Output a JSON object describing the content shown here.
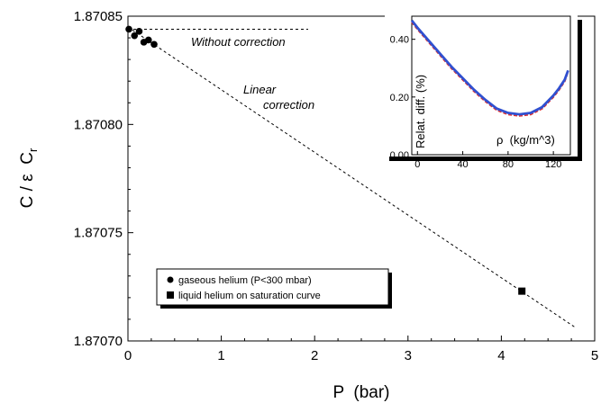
{
  "chart_data": {
    "type": "scatter",
    "title": "",
    "xlabel": "P  (bar)",
    "ylabel": "C / ε  C",
    "ylabel_subscript": "r",
    "xlim": [
      0,
      5
    ],
    "ylim": [
      1.8707,
      1.87085
    ],
    "x_ticks": [
      "0",
      "1",
      "2",
      "3",
      "4",
      "5"
    ],
    "y_ticks": [
      "1.87070",
      "1.87075",
      "1.87080",
      "1.87085"
    ],
    "series": [
      {
        "name": "gaseous helium (P<300 mbar)",
        "marker": "circle",
        "x": [
          0.01,
          0.07,
          0.12,
          0.17,
          0.22,
          0.28
        ],
        "y": [
          1.870844,
          1.870841,
          1.870843,
          1.870838,
          1.870839,
          1.870837
        ]
      },
      {
        "name": "liquid helium on saturation curve",
        "marker": "square",
        "x": [
          4.22
        ],
        "y": [
          1.870723
        ]
      }
    ],
    "reference_lines": [
      {
        "label": "Without correction",
        "x": [
          0.0,
          1.93
        ],
        "y": [
          1.870844,
          1.870844
        ],
        "style": "dashed"
      },
      {
        "label": "Linear correction",
        "x": [
          0.0,
          4.8
        ],
        "y": [
          1.870845,
          1.870706
        ],
        "style": "dashed"
      }
    ],
    "legend_position": "bottom-center",
    "inset": {
      "type": "line",
      "xlabel": "ρ  (kg/m^3)",
      "ylabel": "Relat. diff. (%)",
      "xlim": [
        -5,
        135
      ],
      "ylim": [
        0,
        0.48
      ],
      "x_ticks": [
        "0",
        "40",
        "80",
        "120"
      ],
      "y_ticks": [
        "0.00",
        "0.20",
        "0.40"
      ],
      "series": [
        {
          "color": "#e03030",
          "x": [
            -5,
            0,
            10,
            20,
            30,
            40,
            50,
            60,
            70,
            80,
            90,
            100,
            110,
            120,
            125,
            130,
            133
          ],
          "y": [
            0.46,
            0.435,
            0.39,
            0.345,
            0.3,
            0.26,
            0.22,
            0.185,
            0.155,
            0.14,
            0.135,
            0.14,
            0.16,
            0.2,
            0.225,
            0.255,
            0.29
          ]
        },
        {
          "color": "#3050d0",
          "x": [
            -5,
            0,
            10,
            20,
            30,
            40,
            50,
            60,
            70,
            80,
            90,
            100,
            110,
            120,
            125,
            130,
            133
          ],
          "y": [
            0.465,
            0.44,
            0.395,
            0.35,
            0.305,
            0.265,
            0.225,
            0.19,
            0.16,
            0.145,
            0.14,
            0.145,
            0.165,
            0.205,
            0.23,
            0.26,
            0.292
          ]
        }
      ]
    }
  }
}
